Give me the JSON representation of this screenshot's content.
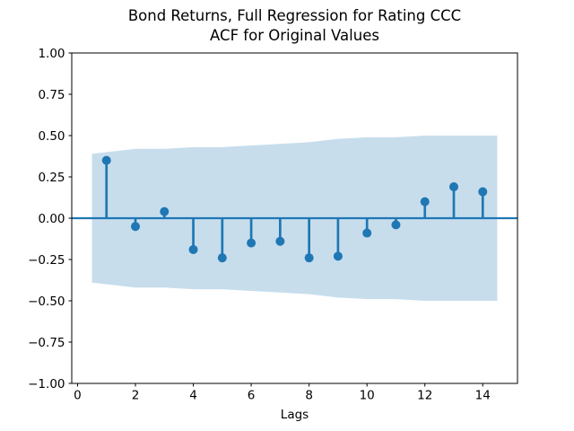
{
  "figure": {
    "title_line1": "Bond Returns, Full Regression for Rating CCC",
    "title_line2": "ACF for Original Values"
  },
  "chart_data": {
    "type": "stem",
    "subtype": "acf-correlogram",
    "title": "Bond Returns, Full Regression for Rating CCC\nACF for Original Values",
    "xlabel": "Lags",
    "ylabel": "",
    "xlim": [
      -0.2,
      15.2
    ],
    "ylim": [
      -1.0,
      1.0
    ],
    "grid": false,
    "legend": null,
    "x_ticks": [
      0,
      2,
      4,
      6,
      8,
      10,
      12,
      14
    ],
    "x_tick_labels": [
      "0",
      "2",
      "4",
      "6",
      "8",
      "10",
      "12",
      "14"
    ],
    "y_ticks": [
      1.0,
      0.75,
      0.5,
      0.25,
      0.0,
      -0.25,
      -0.5,
      -0.75,
      -1.0
    ],
    "y_tick_labels": [
      "1.00",
      "0.75",
      "0.50",
      "0.25",
      "0.00",
      "−0.25",
      "−0.50",
      "−0.75",
      "−1.00"
    ],
    "lags": [
      1,
      2,
      3,
      4,
      5,
      6,
      7,
      8,
      9,
      10,
      11,
      12,
      13,
      14
    ],
    "acf_values": [
      0.35,
      -0.05,
      0.04,
      -0.19,
      -0.24,
      -0.15,
      -0.14,
      -0.24,
      -0.23,
      -0.09,
      -0.04,
      0.1,
      0.19,
      0.16
    ],
    "zero_line": 0.0,
    "confidence_band": {
      "x": [
        0.5,
        2,
        3,
        4,
        5,
        6,
        7,
        8,
        9,
        10,
        11,
        12,
        13,
        14.5
      ],
      "upper": [
        0.39,
        0.42,
        0.42,
        0.43,
        0.43,
        0.44,
        0.45,
        0.46,
        0.48,
        0.49,
        0.49,
        0.5,
        0.5,
        0.5
      ],
      "lower": [
        -0.39,
        -0.42,
        -0.42,
        -0.43,
        -0.43,
        -0.44,
        -0.45,
        -0.46,
        -0.48,
        -0.49,
        -0.49,
        -0.5,
        -0.5,
        -0.5
      ]
    },
    "colors": {
      "series": "#1f77b4",
      "band": "#1f77b4",
      "band_opacity": 0.25,
      "axis": "#000000",
      "background": "#ffffff"
    }
  }
}
